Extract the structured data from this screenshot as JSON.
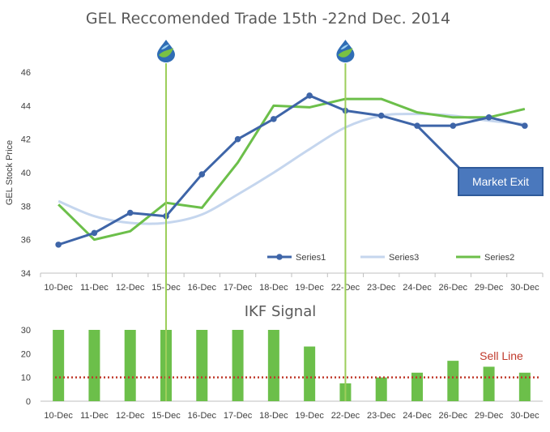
{
  "colors": {
    "series1": "#3e65a8",
    "series3": "#c5d6ee",
    "series2": "#6cbf4a",
    "bars": "#6cbf4a",
    "signal_line": "#9dce5b",
    "sell_line": "#c0392b",
    "axis": "#bfbfbf",
    "callout": "#4a78bd"
  },
  "chart_data": [
    {
      "type": "line",
      "title": "GEL Reccomended Trade 15th -22nd Dec. 2014",
      "xlabel": "",
      "ylabel": "GEL Stock Price",
      "ylim": [
        34,
        46
      ],
      "yticks": [
        34,
        36,
        38,
        40,
        42,
        44,
        46
      ],
      "categories": [
        "10-Dec",
        "11-Dec",
        "12-Dec",
        "15-Dec",
        "16-Dec",
        "17-Dec",
        "18-Dec",
        "19-Dec",
        "22-Dec",
        "23-Dec",
        "24-Dec",
        "26-Dec",
        "29-Dec",
        "30-Dec"
      ],
      "series": [
        {
          "name": "Series1",
          "values": [
            35.7,
            36.4,
            37.6,
            37.4,
            39.9,
            42.0,
            43.2,
            44.6,
            43.7,
            43.4,
            42.8,
            42.8,
            43.3,
            42.8
          ]
        },
        {
          "name": "Series3",
          "values": [
            38.3,
            37.4,
            37.0,
            37.0,
            37.5,
            38.7,
            40.0,
            41.4,
            42.7,
            43.4,
            43.5,
            43.4,
            43.1,
            42.9
          ]
        },
        {
          "name": "Series2",
          "values": [
            38.1,
            36.0,
            36.5,
            38.2,
            37.9,
            40.6,
            44.0,
            43.9,
            44.4,
            44.4,
            43.6,
            43.3,
            43.3,
            43.8
          ]
        }
      ],
      "exit_projection": {
        "from_category": "24-Dec",
        "from_value": 42.8,
        "to_value": 39.9
      },
      "signal_markers": [
        "15-Dec",
        "22-Dec"
      ],
      "legend_position": "bottom-right",
      "grid": false
    },
    {
      "type": "bar",
      "title": "IKF Signal",
      "ylim": [
        0,
        30
      ],
      "yticks": [
        0,
        10,
        20,
        30
      ],
      "categories": [
        "10-Dec",
        "11-Dec",
        "12-Dec",
        "15-Dec",
        "16-Dec",
        "17-Dec",
        "18-Dec",
        "19-Dec",
        "22-Dec",
        "23-Dec",
        "24-Dec",
        "26-Dec",
        "29-Dec",
        "30-Dec"
      ],
      "values": [
        30,
        30,
        30,
        30,
        30,
        30,
        30,
        23,
        7.5,
        10,
        12,
        17,
        14.5,
        12
      ],
      "reference_line": {
        "name": "Sell Line",
        "value": 10
      },
      "grid": false
    }
  ],
  "annotations": {
    "market_exit": "Market Exit",
    "sell_line_label": "Sell Line"
  }
}
